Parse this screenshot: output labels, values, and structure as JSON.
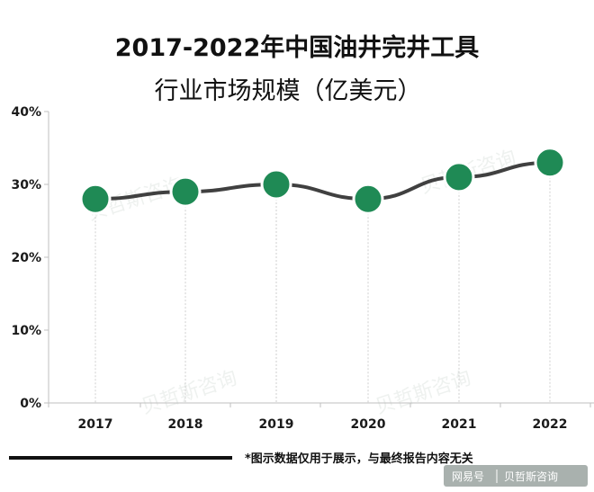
{
  "chart_data": {
    "type": "line",
    "title_line1": "2017-2022年中国油井完井工具",
    "title_line2": "行业市场规模（亿美元）",
    "categories": [
      "2017",
      "2018",
      "2019",
      "2020",
      "2021",
      "2022"
    ],
    "values": [
      28,
      29,
      30,
      28,
      31,
      33
    ],
    "yticks": [
      "0%",
      "10%",
      "20%",
      "30%",
      "40%"
    ],
    "ylim": [
      0,
      40
    ],
    "grid": false,
    "line_color": "#404040",
    "marker_color": "#1f8a55"
  },
  "footnote": "*图示数据仅用于展示，与最终报告内容无关",
  "source": {
    "platform": "网易号",
    "author": "贝哲斯咨询"
  },
  "watermark": "贝哲斯咨询"
}
